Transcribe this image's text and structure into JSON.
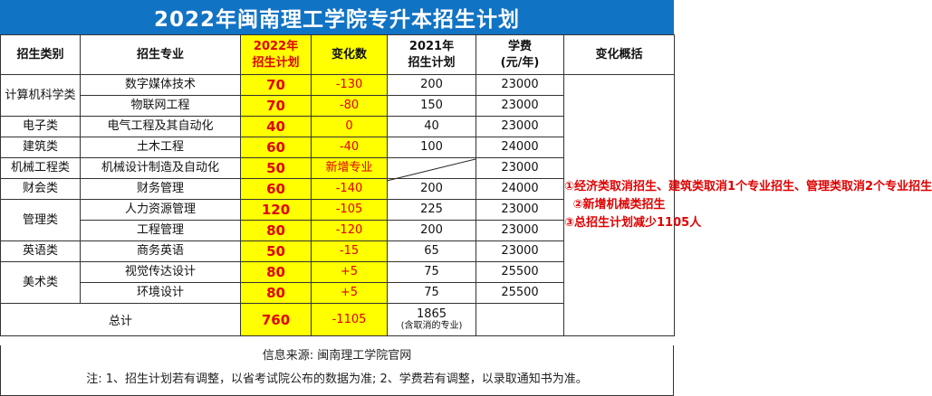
{
  "title": "2022年闽南理工学院专升本招生计划",
  "headers": {
    "category": "招生类别",
    "major": "招生专业",
    "plan2022_l1": "2022年",
    "plan2022_l2": "招生计划",
    "change": "变化数",
    "plan2021_l1": "2021年",
    "plan2021_l2": "招生计划",
    "fee_l1": "学费",
    "fee_l2": "(元/年)",
    "summary": "变化概括"
  },
  "rows": [
    {
      "category": "计算机科学类",
      "major": "数字媒体技术",
      "plan2022": "70",
      "change": "-130",
      "plan2021": "200",
      "fee": "23000"
    },
    {
      "major": "物联网工程",
      "plan2022": "70",
      "change": "-80",
      "plan2021": "150",
      "fee": "23000"
    },
    {
      "category": "电子类",
      "major": "电气工程及其自动化",
      "plan2022": "40",
      "change": "0",
      "plan2021": "40",
      "fee": "23000"
    },
    {
      "category": "建筑类",
      "major": "土木工程",
      "plan2022": "60",
      "change": "-40",
      "plan2021": "100",
      "fee": "24000"
    },
    {
      "category": "机械工程类",
      "major": "机械设计制造及自动化",
      "plan2022": "50",
      "change": "新增专业",
      "plan2021": "",
      "fee": "23000"
    },
    {
      "category": "财会类",
      "major": "财务管理",
      "plan2022": "60",
      "change": "-140",
      "plan2021": "200",
      "fee": "24000"
    },
    {
      "category": "管理类",
      "major": "人力资源管理",
      "plan2022": "120",
      "change": "-105",
      "plan2021": "225",
      "fee": "23000"
    },
    {
      "major": "工程管理",
      "plan2022": "80",
      "change": "-120",
      "plan2021": "200",
      "fee": "23000"
    },
    {
      "category": "英语类",
      "major": "商务英语",
      "plan2022": "50",
      "change": "-15",
      "plan2021": "65",
      "fee": "23000"
    },
    {
      "category": "美术类",
      "major": "视觉传达设计",
      "plan2022": "80",
      "change": "+5",
      "plan2021": "75",
      "fee": "25500"
    },
    {
      "major": "环境设计",
      "plan2022": "80",
      "change": "+5",
      "plan2021": "75",
      "fee": "25500"
    }
  ],
  "total": {
    "label": "总计",
    "plan2022": "760",
    "change": "-1105",
    "plan2021": "1865",
    "plan2021_note": "(含取消的专业)"
  },
  "summary": [
    "①经济类取消招生、建筑类取消1个专业招生、管理类取消2个专业招生",
    "②新增机械类招生",
    "③总招生计划减少1105人"
  ],
  "footer": {
    "source": "信息来源:  闽南理工学院官网",
    "note": "注: 1、招生计划若有调整，以省考试院公布的数据为准; 2、学费若有调整，以录取通知书为准。"
  },
  "colors": {
    "title_bg": "#1173c4",
    "highlight": "#ffff00",
    "accent_red": "#e00000"
  }
}
